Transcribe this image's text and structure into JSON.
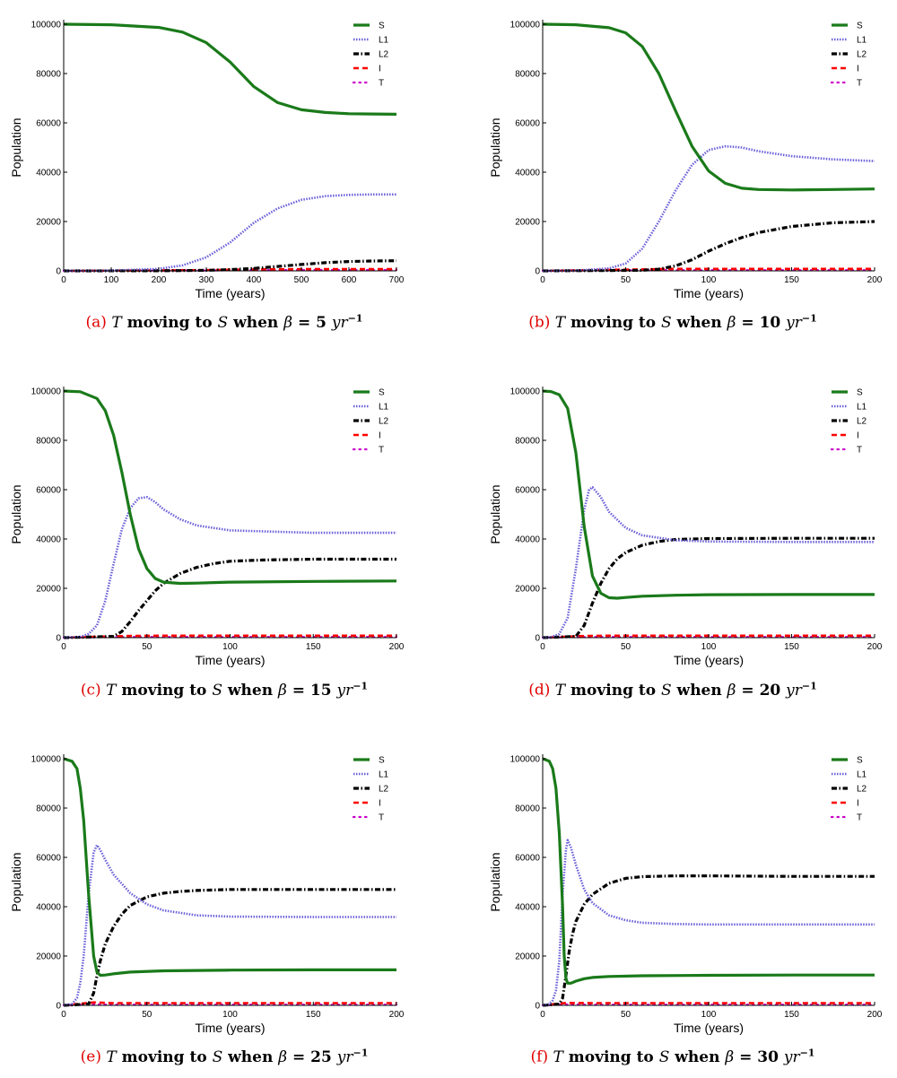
{
  "figure": {
    "axis_font": "sans",
    "colors": {
      "S": "#1a7a1a",
      "L1": "#6a5fd8",
      "L2": "#000000",
      "I": "#ff0000",
      "T": "#cc00cc"
    },
    "legend_labels": [
      "S",
      "L1",
      "L2",
      "I",
      "T"
    ]
  },
  "chart_data": [
    {
      "id": "a",
      "type": "line",
      "caption_label": "(a)",
      "caption_parts": [
        "T",
        " moving to ",
        "S",
        " when ",
        "β",
        " = 5 ",
        "yr",
        "−1"
      ],
      "xlabel": "Time (years)",
      "ylabel": "Population",
      "xlim": [
        0,
        700
      ],
      "ylim": [
        0,
        100000
      ],
      "xticks": [
        0,
        100,
        200,
        300,
        400,
        500,
        600,
        700
      ],
      "yticks": [
        0,
        20000,
        40000,
        60000,
        80000,
        100000
      ],
      "legend": "top-right",
      "series": [
        {
          "name": "S",
          "x": [
            0,
            100,
            200,
            250,
            300,
            350,
            400,
            450,
            500,
            550,
            600,
            650,
            700
          ],
          "y": [
            100000,
            99800,
            98700,
            96800,
            92500,
            84700,
            74700,
            68200,
            65300,
            64200,
            63700,
            63600,
            63500
          ]
        },
        {
          "name": "L1",
          "x": [
            0,
            100,
            200,
            250,
            300,
            350,
            400,
            450,
            500,
            550,
            600,
            650,
            700
          ],
          "y": [
            0,
            100,
            800,
            2200,
            5500,
            11500,
            19500,
            25300,
            28800,
            30300,
            30800,
            31000,
            31000
          ]
        },
        {
          "name": "L2",
          "x": [
            0,
            200,
            300,
            350,
            400,
            450,
            500,
            550,
            600,
            650,
            700
          ],
          "y": [
            0,
            50,
            200,
            500,
            1000,
            1800,
            2600,
            3300,
            3800,
            4000,
            4100
          ]
        },
        {
          "name": "I",
          "x": [
            0,
            300,
            400,
            500,
            600,
            700
          ],
          "y": [
            0,
            300,
            600,
            700,
            700,
            700
          ]
        },
        {
          "name": "T",
          "x": [
            0,
            300,
            400,
            500,
            600,
            700
          ],
          "y": [
            0,
            150,
            300,
            350,
            350,
            350
          ]
        }
      ]
    },
    {
      "id": "b",
      "type": "line",
      "caption_label": "(b)",
      "caption_parts": [
        "T",
        " moving to ",
        "S",
        " when ",
        "β",
        " = 10 ",
        "yr",
        "−1"
      ],
      "xlabel": "Time (years)",
      "ylabel": "Population",
      "xlim": [
        0,
        200
      ],
      "ylim": [
        0,
        100000
      ],
      "xticks": [
        0,
        50,
        100,
        150,
        200
      ],
      "yticks": [
        0,
        20000,
        40000,
        60000,
        80000,
        100000
      ],
      "legend": "top-right",
      "series": [
        {
          "name": "S",
          "x": [
            0,
            20,
            40,
            50,
            60,
            70,
            80,
            90,
            100,
            110,
            120,
            130,
            150,
            175,
            200
          ],
          "y": [
            100000,
            99800,
            98600,
            96500,
            91000,
            80000,
            65000,
            50500,
            40500,
            35500,
            33500,
            33000,
            32800,
            33000,
            33200
          ]
        },
        {
          "name": "L1",
          "x": [
            0,
            20,
            40,
            50,
            60,
            70,
            80,
            90,
            100,
            110,
            120,
            130,
            150,
            175,
            200
          ],
          "y": [
            0,
            100,
            1000,
            3000,
            9000,
            20000,
            32500,
            43000,
            49000,
            50500,
            50000,
            48500,
            46500,
            45200,
            44500
          ]
        },
        {
          "name": "L2",
          "x": [
            0,
            60,
            70,
            80,
            90,
            100,
            110,
            120,
            130,
            150,
            175,
            200
          ],
          "y": [
            0,
            200,
            700,
            2000,
            4500,
            8000,
            11000,
            13500,
            15500,
            18000,
            19500,
            20000
          ]
        },
        {
          "name": "I",
          "x": [
            0,
            80,
            120,
            200
          ],
          "y": [
            0,
            800,
            800,
            800
          ]
        },
        {
          "name": "T",
          "x": [
            0,
            80,
            120,
            200
          ],
          "y": [
            0,
            300,
            300,
            300
          ]
        }
      ]
    },
    {
      "id": "c",
      "type": "line",
      "caption_label": "(c)",
      "caption_parts": [
        "T",
        " moving to ",
        "S",
        " when ",
        "β",
        " = 15 ",
        "yr",
        "−1"
      ],
      "xlabel": "Time (years)",
      "ylabel": "Population",
      "xlim": [
        0,
        200
      ],
      "ylim": [
        0,
        100000
      ],
      "xticks": [
        0,
        50,
        100,
        150,
        200
      ],
      "yticks": [
        0,
        20000,
        40000,
        60000,
        80000,
        100000
      ],
      "legend": "top-right",
      "series": [
        {
          "name": "S",
          "x": [
            0,
            10,
            20,
            25,
            30,
            35,
            40,
            45,
            50,
            55,
            60,
            70,
            80,
            100,
            150,
            200
          ],
          "y": [
            100000,
            99700,
            97000,
            92000,
            82000,
            67000,
            50000,
            36000,
            28000,
            24000,
            22500,
            22000,
            22100,
            22500,
            22800,
            23000
          ]
        },
        {
          "name": "L1",
          "x": [
            0,
            10,
            15,
            20,
            25,
            30,
            35,
            40,
            45,
            50,
            55,
            60,
            70,
            80,
            100,
            150,
            200
          ],
          "y": [
            0,
            300,
            1500,
            5000,
            15000,
            30000,
            44000,
            52500,
            56500,
            57000,
            55000,
            52000,
            48000,
            45500,
            43500,
            42500,
            42500
          ]
        },
        {
          "name": "L2",
          "x": [
            0,
            30,
            35,
            40,
            45,
            50,
            55,
            60,
            70,
            80,
            90,
            100,
            120,
            150,
            200
          ],
          "y": [
            0,
            500,
            2500,
            6500,
            11000,
            15000,
            19000,
            22000,
            26000,
            28500,
            30000,
            31000,
            31500,
            31800,
            31800
          ]
        },
        {
          "name": "I",
          "x": [
            0,
            40,
            60,
            200
          ],
          "y": [
            0,
            700,
            800,
            800
          ]
        },
        {
          "name": "T",
          "x": [
            0,
            40,
            60,
            200
          ],
          "y": [
            0,
            300,
            300,
            300
          ]
        }
      ]
    },
    {
      "id": "d",
      "type": "line",
      "caption_label": "(d)",
      "caption_parts": [
        "T",
        " moving to ",
        "S",
        " when ",
        "β",
        " = 20 ",
        "yr",
        "−1"
      ],
      "xlabel": "Time (years)",
      "ylabel": "Population",
      "xlim": [
        0,
        200
      ],
      "ylim": [
        0,
        100000
      ],
      "xticks": [
        0,
        50,
        100,
        150,
        200
      ],
      "yticks": [
        0,
        20000,
        40000,
        60000,
        80000,
        100000
      ],
      "legend": "top-right",
      "series": [
        {
          "name": "S",
          "x": [
            0,
            5,
            10,
            15,
            20,
            25,
            30,
            35,
            40,
            45,
            50,
            60,
            80,
            100,
            150,
            200
          ],
          "y": [
            100000,
            99800,
            98500,
            93000,
            75000,
            45000,
            25000,
            18000,
            16200,
            16000,
            16300,
            16800,
            17200,
            17400,
            17500,
            17500
          ]
        },
        {
          "name": "L1",
          "x": [
            0,
            5,
            10,
            15,
            20,
            25,
            28,
            30,
            35,
            40,
            50,
            60,
            80,
            100,
            150,
            200
          ],
          "y": [
            0,
            200,
            1500,
            8000,
            28000,
            52000,
            60000,
            61000,
            57000,
            51000,
            44500,
            41500,
            39500,
            39000,
            38800,
            38800
          ]
        },
        {
          "name": "L2",
          "x": [
            0,
            20,
            25,
            30,
            35,
            40,
            45,
            50,
            60,
            70,
            80,
            100,
            150,
            200
          ],
          "y": [
            0,
            500,
            5000,
            14000,
            22000,
            28000,
            32000,
            34500,
            37500,
            39000,
            39800,
            40200,
            40300,
            40300
          ]
        },
        {
          "name": "I",
          "x": [
            0,
            25,
            40,
            200
          ],
          "y": [
            0,
            700,
            800,
            800
          ]
        },
        {
          "name": "T",
          "x": [
            0,
            25,
            40,
            200
          ],
          "y": [
            0,
            300,
            300,
            300
          ]
        }
      ]
    },
    {
      "id": "e",
      "type": "line",
      "caption_label": "(e)",
      "caption_parts": [
        "T",
        " moving to ",
        "S",
        " when ",
        "β",
        " = 25 ",
        "yr",
        "−1"
      ],
      "xlabel": "Time (years)",
      "ylabel": "Population",
      "xlim": [
        0,
        200
      ],
      "ylim": [
        0,
        100000
      ],
      "xticks": [
        0,
        50,
        100,
        150,
        200
      ],
      "yticks": [
        0,
        20000,
        40000,
        60000,
        80000,
        100000
      ],
      "legend": "top-right",
      "series": [
        {
          "name": "S",
          "x": [
            0,
            5,
            8,
            10,
            12,
            15,
            18,
            20,
            22,
            25,
            30,
            40,
            60,
            100,
            150,
            200
          ],
          "y": [
            100000,
            99000,
            96000,
            88000,
            75000,
            45000,
            20000,
            13500,
            12200,
            12300,
            12800,
            13500,
            14000,
            14300,
            14400,
            14400
          ]
        },
        {
          "name": "L1",
          "x": [
            0,
            5,
            8,
            10,
            12,
            15,
            18,
            20,
            22,
            25,
            30,
            40,
            50,
            60,
            80,
            100,
            150,
            200
          ],
          "y": [
            0,
            500,
            3000,
            9000,
            20000,
            45000,
            62000,
            65000,
            63000,
            59000,
            53000,
            45500,
            41000,
            38500,
            36500,
            36000,
            35800,
            35800
          ]
        },
        {
          "name": "L2",
          "x": [
            0,
            15,
            18,
            20,
            22,
            25,
            30,
            35,
            40,
            50,
            60,
            70,
            80,
            100,
            150,
            200
          ],
          "y": [
            0,
            500,
            5000,
            12000,
            18000,
            25000,
            32000,
            37000,
            40500,
            44000,
            45500,
            46200,
            46600,
            47000,
            47000,
            47000
          ]
        },
        {
          "name": "I",
          "x": [
            0,
            18,
            30,
            200
          ],
          "y": [
            0,
            1200,
            900,
            900
          ]
        },
        {
          "name": "T",
          "x": [
            0,
            18,
            30,
            200
          ],
          "y": [
            0,
            400,
            300,
            300
          ]
        }
      ]
    },
    {
      "id": "f",
      "type": "line",
      "caption_label": "(f)",
      "caption_parts": [
        "T",
        " moving to ",
        "S",
        " when ",
        "β",
        " = 30 ",
        "yr",
        "−1"
      ],
      "xlabel": "Time (years)",
      "ylabel": "Population",
      "xlim": [
        0,
        200
      ],
      "ylim": [
        0,
        100000
      ],
      "xticks": [
        0,
        50,
        100,
        150,
        200
      ],
      "yticks": [
        0,
        20000,
        40000,
        60000,
        80000,
        100000
      ],
      "legend": "top-right",
      "series": [
        {
          "name": "S",
          "x": [
            0,
            4,
            6,
            8,
            10,
            12,
            13,
            14,
            15,
            17,
            20,
            25,
            30,
            40,
            60,
            100,
            150,
            200
          ],
          "y": [
            100000,
            99000,
            96000,
            88000,
            70000,
            40000,
            20000,
            11000,
            9000,
            9000,
            9800,
            10800,
            11300,
            11700,
            12000,
            12200,
            12300,
            12300
          ]
        },
        {
          "name": "L1",
          "x": [
            0,
            4,
            6,
            8,
            10,
            12,
            14,
            15,
            17,
            20,
            25,
            30,
            40,
            50,
            60,
            80,
            100,
            150,
            200
          ],
          "y": [
            0,
            500,
            2000,
            6000,
            18000,
            45000,
            63000,
            67000,
            64000,
            57000,
            47000,
            41500,
            36500,
            34500,
            33500,
            33000,
            32800,
            32800,
            32800
          ]
        },
        {
          "name": "L2",
          "x": [
            0,
            10,
            12,
            14,
            16,
            18,
            20,
            25,
            30,
            40,
            50,
            60,
            80,
            100,
            150,
            200
          ],
          "y": [
            0,
            500,
            3000,
            12000,
            22000,
            29000,
            34000,
            41000,
            45000,
            49500,
            51500,
            52200,
            52500,
            52500,
            52300,
            52300
          ]
        },
        {
          "name": "I",
          "x": [
            0,
            14,
            30,
            200
          ],
          "y": [
            0,
            1000,
            900,
            900
          ]
        },
        {
          "name": "T",
          "x": [
            0,
            14,
            30,
            200
          ],
          "y": [
            0,
            400,
            300,
            300
          ]
        }
      ]
    }
  ]
}
